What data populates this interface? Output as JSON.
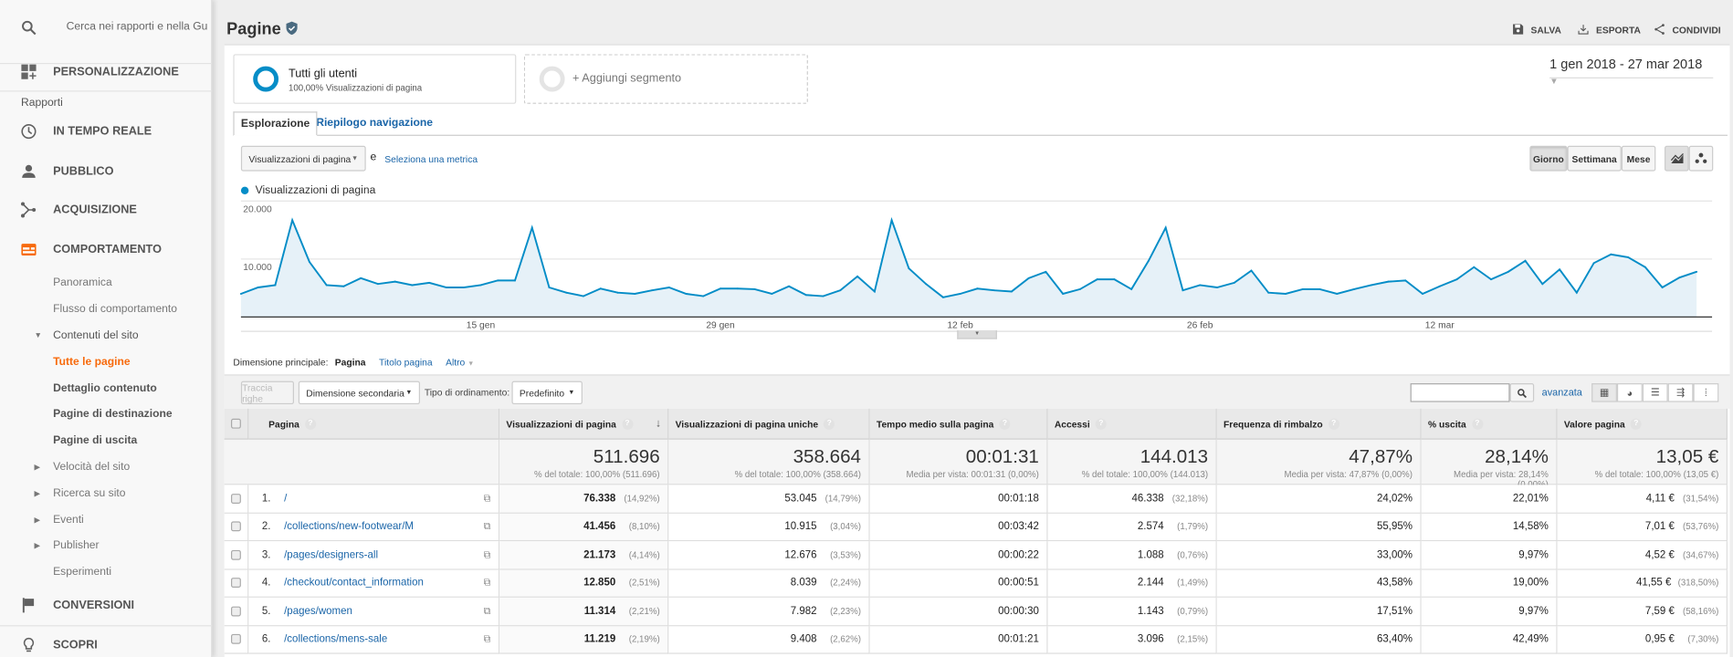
{
  "sidebar": {
    "search_placeholder": "Cerca nei rapporti e nella Gu",
    "customization": "PERSONALIZZAZIONE",
    "reports_heading": "Rapporti",
    "realtime": "IN TEMPO REALE",
    "audience": "PUBBLICO",
    "acquisition": "ACQUISIZIONE",
    "behavior": "COMPORTAMENTO",
    "behavior_items": {
      "overview": "Panoramica",
      "flow": "Flusso di comportamento",
      "site_content": "Contenuti del sito",
      "all_pages": "Tutte le pagine",
      "content_drilldown": "Dettaglio contenuto",
      "landing_pages": "Pagine di destinazione",
      "exit_pages": "Pagine di uscita",
      "site_speed": "Velocità del sito",
      "site_search": "Ricerca su sito",
      "events": "Eventi",
      "publisher": "Publisher",
      "experiments": "Esperimenti"
    },
    "conversions": "CONVERSIONI",
    "discover": "SCOPRI",
    "accent_color": "#f76a0c"
  },
  "header": {
    "title": "Pagine",
    "save": "SALVA",
    "export": "ESPORTA",
    "share": "CONDIVIDI"
  },
  "segments": {
    "active_name": "Tutti gli utenti",
    "active_sub": "100,00% Visualizzazioni di pagina",
    "add": "+ Aggiungi segmento"
  },
  "date_range": "1 gen 2018 - 27 mar 2018",
  "tabs": {
    "explorer": "Esplorazione",
    "navigation": "Riepilogo navigazione"
  },
  "chart_controls": {
    "metric": "Visualizzazioni di pagina",
    "and": "e",
    "select_metric": "Seleziona una metrica",
    "day": "Giorno",
    "week": "Settimana",
    "month": "Mese"
  },
  "chart_data": {
    "type": "area",
    "legend": "Visualizzazioni di pagina",
    "series_color": "#058dc7",
    "ylim": [
      0,
      20000
    ],
    "yticks": [
      "20.000",
      "10.000"
    ],
    "ytick_values": [
      20000,
      10000
    ],
    "xticks": [
      "15 gen",
      "29 gen",
      "12 feb",
      "26 feb",
      "12 mar"
    ],
    "xtick_dates": [
      "2018-01-15",
      "2018-01-29",
      "2018-02-12",
      "2018-02-26",
      "2018-03-12"
    ],
    "grid": true,
    "x": [
      "2018-01-01",
      "2018-01-02",
      "2018-01-03",
      "2018-01-04",
      "2018-01-05",
      "2018-01-06",
      "2018-01-07",
      "2018-01-08",
      "2018-01-09",
      "2018-01-10",
      "2018-01-11",
      "2018-01-12",
      "2018-01-13",
      "2018-01-14",
      "2018-01-15",
      "2018-01-16",
      "2018-01-17",
      "2018-01-18",
      "2018-01-19",
      "2018-01-20",
      "2018-01-21",
      "2018-01-22",
      "2018-01-23",
      "2018-01-24",
      "2018-01-25",
      "2018-01-26",
      "2018-01-27",
      "2018-01-28",
      "2018-01-29",
      "2018-01-30",
      "2018-01-31",
      "2018-02-01",
      "2018-02-02",
      "2018-02-03",
      "2018-02-04",
      "2018-02-05",
      "2018-02-06",
      "2018-02-07",
      "2018-02-08",
      "2018-02-09",
      "2018-02-10",
      "2018-02-11",
      "2018-02-12",
      "2018-02-13",
      "2018-02-14",
      "2018-02-15",
      "2018-02-16",
      "2018-02-17",
      "2018-02-18",
      "2018-02-19",
      "2018-02-20",
      "2018-02-21",
      "2018-02-22",
      "2018-02-23",
      "2018-02-24",
      "2018-02-25",
      "2018-02-26",
      "2018-02-27",
      "2018-02-28",
      "2018-03-01",
      "2018-03-02",
      "2018-03-03",
      "2018-03-04",
      "2018-03-05",
      "2018-03-06",
      "2018-03-07",
      "2018-03-08",
      "2018-03-09",
      "2018-03-10",
      "2018-03-11",
      "2018-03-12",
      "2018-03-13",
      "2018-03-14",
      "2018-03-15",
      "2018-03-16",
      "2018-03-17",
      "2018-03-18",
      "2018-03-19",
      "2018-03-20",
      "2018-03-21",
      "2018-03-22",
      "2018-03-23",
      "2018-03-24",
      "2018-03-25",
      "2018-03-26",
      "2018-03-27"
    ],
    "values": [
      4000,
      5100,
      5500,
      16700,
      9500,
      5500,
      5300,
      6700,
      5700,
      6100,
      5500,
      5900,
      5100,
      5100,
      5500,
      6300,
      6300,
      15400,
      5100,
      4200,
      3600,
      4900,
      4200,
      4000,
      4600,
      5100,
      4000,
      3600,
      4900,
      4900,
      4800,
      4000,
      5300,
      3800,
      3600,
      4600,
      7000,
      4400,
      16700,
      8400,
      5700,
      3400,
      4000,
      4900,
      4600,
      4400,
      6700,
      7800,
      4000,
      4800,
      6500,
      6500,
      4800,
      9700,
      15400,
      4600,
      5500,
      5100,
      5900,
      8000,
      4200,
      4000,
      4800,
      4800,
      4000,
      4800,
      5500,
      6100,
      6300,
      4000,
      5300,
      6500,
      8600,
      6500,
      7800,
      9700,
      5700,
      8200,
      4200,
      9300,
      10800,
      10300,
      8600,
      5100,
      6800,
      7800
    ]
  },
  "dimension": {
    "label": "Dimensione principale:",
    "active": "Pagina",
    "page_title": "Titolo pagina",
    "other": "Altro"
  },
  "toolbar": {
    "plot_rows": "Traccia righe",
    "secondary_dimension": "Dimensione secondaria",
    "sort_label": "Tipo di ordinamento:",
    "sort_value": "Predefinito",
    "search_value": "",
    "advanced": "avanzata"
  },
  "table": {
    "columns": [
      "Pagina",
      "Visualizzazioni di pagina",
      "Visualizzazioni di pagina uniche",
      "Tempo medio sulla pagina",
      "Accessi",
      "Frequenza di rimbalzo",
      "% uscita",
      "Valore pagina"
    ],
    "totals": [
      {
        "value": "511.696",
        "sub": "% del totale: 100,00% (511.696)"
      },
      {
        "value": "358.664",
        "sub": "% del totale: 100,00% (358.664)"
      },
      {
        "value": "00:01:31",
        "sub": "Media per vista: 00:01:31 (0,00%)"
      },
      {
        "value": "144.013",
        "sub": "% del totale: 100,00% (144.013)"
      },
      {
        "value": "47,87%",
        "sub": "Media per vista: 47,87% (0,00%)"
      },
      {
        "value": "28,14%",
        "sub": "Media per vista: 28,14% (0,00%)"
      },
      {
        "value": "13,05 €",
        "sub": "% del totale: 100,00% (13,05 €)"
      }
    ],
    "rows": [
      {
        "rank": "1.",
        "page": "/",
        "pv": "76.338",
        "pv_pct": "(14,92%)",
        "upv": "53.045",
        "upv_pct": "(14,79%)",
        "time": "00:01:18",
        "ent": "46.338",
        "ent_pct": "(32,18%)",
        "bounce": "24,02%",
        "exit": "22,01%",
        "val": "4,11 €",
        "val_pct": "(31,54%)"
      },
      {
        "rank": "2.",
        "page": "/collections/new-footwear/M",
        "pv": "41.456",
        "pv_pct": "(8,10%)",
        "upv": "10.915",
        "upv_pct": "(3,04%)",
        "time": "00:03:42",
        "ent": "2.574",
        "ent_pct": "(1,79%)",
        "bounce": "55,95%",
        "exit": "14,58%",
        "val": "7,01 €",
        "val_pct": "(53,76%)"
      },
      {
        "rank": "3.",
        "page": "/pages/designers-all",
        "pv": "21.173",
        "pv_pct": "(4,14%)",
        "upv": "12.676",
        "upv_pct": "(3,53%)",
        "time": "00:00:22",
        "ent": "1.088",
        "ent_pct": "(0,76%)",
        "bounce": "33,00%",
        "exit": "9,97%",
        "val": "4,52 €",
        "val_pct": "(34,67%)"
      },
      {
        "rank": "4.",
        "page": "/checkout/contact_information",
        "pv": "12.850",
        "pv_pct": "(2,51%)",
        "upv": "8.039",
        "upv_pct": "(2,24%)",
        "time": "00:00:51",
        "ent": "2.144",
        "ent_pct": "(1,49%)",
        "bounce": "43,58%",
        "exit": "19,00%",
        "val": "41,55 €",
        "val_pct": "(318,50%)"
      },
      {
        "rank": "5.",
        "page": "/pages/women",
        "pv": "11.314",
        "pv_pct": "(2,21%)",
        "upv": "7.982",
        "upv_pct": "(2,23%)",
        "time": "00:00:30",
        "ent": "1.143",
        "ent_pct": "(0,79%)",
        "bounce": "17,51%",
        "exit": "9,97%",
        "val": "7,59 €",
        "val_pct": "(58,16%)"
      },
      {
        "rank": "6.",
        "page": "/collections/mens-sale",
        "pv": "11.219",
        "pv_pct": "(2,19%)",
        "upv": "9.408",
        "upv_pct": "(2,62%)",
        "time": "00:01:21",
        "ent": "3.096",
        "ent_pct": "(2,15%)",
        "bounce": "63,40%",
        "exit": "42,49%",
        "val": "0,95 €",
        "val_pct": "(7,30%)"
      }
    ]
  }
}
